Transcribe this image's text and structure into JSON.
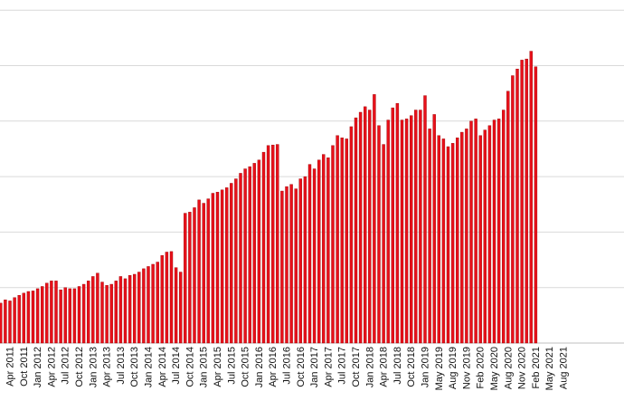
{
  "chart_data": {
    "type": "bar",
    "title": "",
    "xlabel": "",
    "ylabel": "",
    "ylim": [
      0,
      6.2
    ],
    "grid": true,
    "legend": "none",
    "bar_color": "#e8101a",
    "bar_edge_color": "#9a0000",
    "tick_labels": [
      "Apr 2011",
      "Oct 2011",
      "Jan 2012",
      "Apr 2012",
      "Jul 2012",
      "Oct 2012",
      "Jan 2013",
      "Apr 2013",
      "Jul 2013",
      "Oct 2013",
      "Jan 2014",
      "Apr 2014",
      "Jul 2014",
      "Oct 2014",
      "Jan 2015",
      "Apr 2015",
      "Jul 2015",
      "Oct 2015",
      "Jan 2016",
      "Apr 2016",
      "Jul 2016",
      "Oct 2016",
      "Jan 2017",
      "Apr 2017",
      "Jul 2017",
      "Oct 2017",
      "Jan 2018",
      "Apr 2018",
      "Jul 2018",
      "Oct 2018",
      "Jan 2019",
      "May 2019",
      "Aug 2019",
      "Nov 2019",
      "Feb 2020",
      "May 2020",
      "Aug 2020",
      "Nov 2020",
      "Feb 2021",
      "May 2021",
      "Aug 2021"
    ],
    "values": [
      0.72,
      0.78,
      0.76,
      0.82,
      0.86,
      0.9,
      0.93,
      0.94,
      0.98,
      1.02,
      1.08,
      1.12,
      1.12,
      0.96,
      1.0,
      0.98,
      0.98,
      1.02,
      1.06,
      1.12,
      1.2,
      1.26,
      1.1,
      1.04,
      1.06,
      1.12,
      1.2,
      1.16,
      1.22,
      1.24,
      1.28,
      1.34,
      1.38,
      1.42,
      1.46,
      1.58,
      1.64,
      1.65,
      1.36,
      1.28,
      2.34,
      2.36,
      2.44,
      2.58,
      2.52,
      2.6,
      2.7,
      2.72,
      2.76,
      2.8,
      2.88,
      2.96,
      3.06,
      3.14,
      3.18,
      3.24,
      3.3,
      3.44,
      3.56,
      3.57,
      3.58,
      2.74,
      2.82,
      2.86,
      2.78,
      2.96,
      3.0,
      3.22,
      3.14,
      3.3,
      3.4,
      3.34,
      3.56,
      3.74,
      3.7,
      3.68,
      3.9,
      4.06,
      4.16,
      4.26,
      4.2,
      4.48,
      3.92,
      3.58,
      4.02,
      4.24,
      4.32,
      4.02,
      4.04,
      4.1,
      4.2,
      4.2,
      4.46,
      3.86,
      4.12,
      3.74,
      3.68,
      3.54,
      3.6,
      3.7,
      3.8,
      3.86,
      4.0,
      4.04,
      3.74,
      3.84,
      3.92,
      4.02,
      4.04,
      4.2,
      4.54,
      4.82,
      4.94,
      5.1,
      5.12,
      5.26,
      4.98
    ]
  }
}
